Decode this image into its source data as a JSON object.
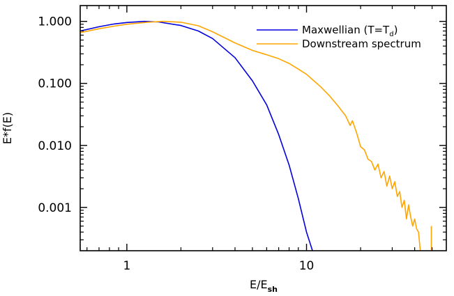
{
  "chart_data": {
    "type": "line",
    "xlabel": "E/E",
    "xlabel_sub": "sh",
    "ylabel": "E*f(E)",
    "x_scale": "log",
    "y_scale": "log",
    "xlim": [
      0.55,
      60
    ],
    "ylim": [
      0.0002,
      1.8
    ],
    "x_ticks": [
      {
        "value": 1,
        "label": "1"
      },
      {
        "value": 10,
        "label": "10"
      }
    ],
    "y_ticks": [
      {
        "value": 1,
        "label": "1.000"
      },
      {
        "value": 0.1,
        "label": "0.100"
      },
      {
        "value": 0.01,
        "label": "0.010"
      },
      {
        "value": 0.001,
        "label": "0.001"
      }
    ],
    "legend": {
      "position": "top-right",
      "entries": [
        {
          "label": "Maxwellian (T=T",
          "sub": "d",
          "suffix": ")",
          "color": "#0000dd"
        },
        {
          "label": "Downstream spectrum",
          "sub": "",
          "suffix": "",
          "color": "#ffa500"
        }
      ]
    },
    "series": [
      {
        "name": "Maxwellian (T=Td)",
        "color": "#0000dd",
        "points": [
          [
            0.55,
            0.7
          ],
          [
            0.7,
            0.82
          ],
          [
            0.85,
            0.91
          ],
          [
            1.0,
            0.96
          ],
          [
            1.25,
            1.0
          ],
          [
            1.5,
            0.98
          ],
          [
            2.0,
            0.86
          ],
          [
            2.5,
            0.7
          ],
          [
            3.0,
            0.53
          ],
          [
            4.0,
            0.26
          ],
          [
            5.0,
            0.11
          ],
          [
            6.0,
            0.045
          ],
          [
            7.0,
            0.015
          ],
          [
            8.0,
            0.0048
          ],
          [
            9.0,
            0.0014
          ],
          [
            10.0,
            0.0004
          ],
          [
            10.8,
            0.0002
          ]
        ]
      },
      {
        "name": "Downstream spectrum",
        "color": "#ffa500",
        "points": [
          [
            0.55,
            0.66
          ],
          [
            0.7,
            0.76
          ],
          [
            0.85,
            0.84
          ],
          [
            1.0,
            0.9
          ],
          [
            1.3,
            0.97
          ],
          [
            1.6,
            1.0
          ],
          [
            2.0,
            0.97
          ],
          [
            2.5,
            0.85
          ],
          [
            3.0,
            0.68
          ],
          [
            4.0,
            0.45
          ],
          [
            5.0,
            0.34
          ],
          [
            6.0,
            0.29
          ],
          [
            7.0,
            0.25
          ],
          [
            8.0,
            0.21
          ],
          [
            9.0,
            0.17
          ],
          [
            10.0,
            0.14
          ],
          [
            11.0,
            0.11
          ],
          [
            12.0,
            0.088
          ],
          [
            13.5,
            0.062
          ],
          [
            15.0,
            0.043
          ],
          [
            16.5,
            0.03
          ],
          [
            17.5,
            0.021
          ],
          [
            18.0,
            0.025
          ],
          [
            19.0,
            0.016
          ],
          [
            20.0,
            0.0095
          ],
          [
            21.0,
            0.0085
          ],
          [
            22.0,
            0.006
          ],
          [
            23.0,
            0.0055
          ],
          [
            24.0,
            0.004
          ],
          [
            25.0,
            0.005
          ],
          [
            26.0,
            0.003
          ],
          [
            27.0,
            0.0038
          ],
          [
            28.0,
            0.0022
          ],
          [
            29.0,
            0.0032
          ],
          [
            30.0,
            0.002
          ],
          [
            31.0,
            0.0026
          ],
          [
            32.0,
            0.0015
          ],
          [
            33.0,
            0.0018
          ],
          [
            34.0,
            0.001
          ],
          [
            35.0,
            0.0013
          ],
          [
            36.0,
            0.00065
          ],
          [
            37.0,
            0.0011
          ],
          [
            38.0,
            0.0007
          ],
          [
            39.0,
            0.0005
          ],
          [
            40.0,
            0.00065
          ],
          [
            41.0,
            0.00045
          ],
          [
            42.0,
            0.0004
          ],
          [
            43.0,
            0.0002
          ]
        ]
      },
      {
        "name": "Downstream spectrum (tail)",
        "color": "#ffa500",
        "points": [
          [
            49.5,
            0.0005
          ],
          [
            49.5,
            0.0002
          ]
        ]
      }
    ]
  }
}
